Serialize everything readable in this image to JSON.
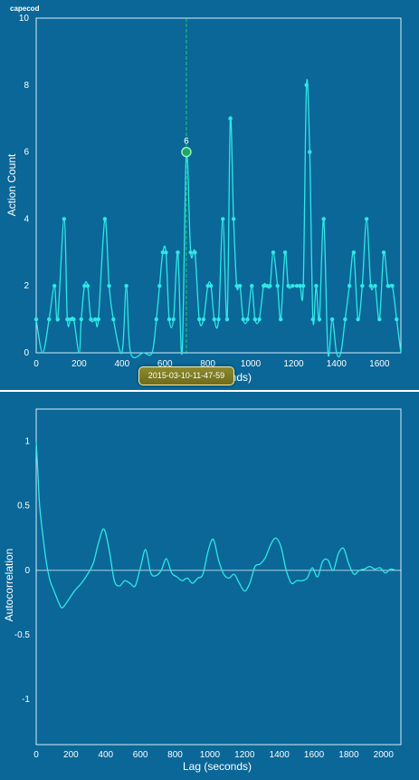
{
  "panels": {
    "top_name": "capecod",
    "tooltip": "2015-03-10-11-47-59",
    "marker_label": "6",
    "divider_color": "#ffffff",
    "line_color": "#2fe7e7",
    "marker_color": "#27c86e",
    "background": "#0a6797"
  },
  "chart_data": [
    {
      "type": "line",
      "xlabel": "Lag (seconds)",
      "ylabel": "Action Count",
      "xlim": [
        0,
        1700
      ],
      "ylim": [
        0,
        10
      ],
      "xticks": [
        0,
        200,
        400,
        600,
        800,
        1000,
        1200,
        1400,
        1600
      ],
      "yticks": [
        0,
        2,
        4,
        6,
        8,
        10
      ],
      "highlight": {
        "x": 700,
        "y": 6
      },
      "points": [
        [
          0,
          1
        ],
        [
          30,
          0
        ],
        [
          60,
          1
        ],
        [
          85,
          2
        ],
        [
          100,
          1
        ],
        [
          130,
          4
        ],
        [
          145,
          1
        ],
        [
          160,
          1
        ],
        [
          175,
          1
        ],
        [
          200,
          0
        ],
        [
          210,
          1
        ],
        [
          225,
          2
        ],
        [
          240,
          2
        ],
        [
          255,
          1
        ],
        [
          275,
          1
        ],
        [
          290,
          1
        ],
        [
          320,
          4
        ],
        [
          340,
          2
        ],
        [
          360,
          1
        ],
        [
          400,
          0
        ],
        [
          420,
          2
        ],
        [
          440,
          0
        ],
        [
          500,
          0
        ],
        [
          540,
          0
        ],
        [
          560,
          1
        ],
        [
          575,
          2
        ],
        [
          590,
          3
        ],
        [
          605,
          3
        ],
        [
          620,
          1
        ],
        [
          640,
          1
        ],
        [
          660,
          3
        ],
        [
          680,
          0
        ],
        [
          700,
          6
        ],
        [
          720,
          3
        ],
        [
          740,
          3
        ],
        [
          760,
          1
        ],
        [
          780,
          1
        ],
        [
          800,
          2
        ],
        [
          815,
          2
        ],
        [
          830,
          1
        ],
        [
          850,
          1
        ],
        [
          870,
          4
        ],
        [
          890,
          1
        ],
        [
          905,
          7
        ],
        [
          920,
          4
        ],
        [
          935,
          2
        ],
        [
          950,
          2
        ],
        [
          965,
          1
        ],
        [
          985,
          1
        ],
        [
          1005,
          2
        ],
        [
          1020,
          1
        ],
        [
          1040,
          1
        ],
        [
          1060,
          2
        ],
        [
          1075,
          2
        ],
        [
          1090,
          2
        ],
        [
          1105,
          3
        ],
        [
          1125,
          2
        ],
        [
          1140,
          1
        ],
        [
          1160,
          3
        ],
        [
          1175,
          2
        ],
        [
          1195,
          2
        ],
        [
          1215,
          2
        ],
        [
          1230,
          2
        ],
        [
          1245,
          2
        ],
        [
          1260,
          8
        ],
        [
          1275,
          6
        ],
        [
          1290,
          1
        ],
        [
          1305,
          2
        ],
        [
          1320,
          1
        ],
        [
          1340,
          4
        ],
        [
          1360,
          0
        ],
        [
          1380,
          1
        ],
        [
          1400,
          0
        ],
        [
          1420,
          0
        ],
        [
          1440,
          1
        ],
        [
          1460,
          2
        ],
        [
          1480,
          3
        ],
        [
          1500,
          1
        ],
        [
          1520,
          2
        ],
        [
          1540,
          4
        ],
        [
          1560,
          2
        ],
        [
          1580,
          2
        ],
        [
          1600,
          1
        ],
        [
          1620,
          3
        ],
        [
          1640,
          2
        ],
        [
          1660,
          2
        ],
        [
          1680,
          1
        ],
        [
          1700,
          0
        ]
      ]
    },
    {
      "type": "line",
      "xlabel": "Lag (seconds)",
      "ylabel": "Autocorrelation",
      "xlim": [
        0,
        2100
      ],
      "ylim": [
        -1.35,
        1.25
      ],
      "xticks": [
        0,
        200,
        400,
        600,
        800,
        1000,
        1200,
        1400,
        1600,
        1800,
        2000
      ],
      "yticks": [
        1,
        0.5,
        0,
        -0.5,
        -1
      ],
      "points": [
        [
          0,
          1
        ],
        [
          10,
          0.75
        ],
        [
          20,
          0.5
        ],
        [
          40,
          0.25
        ],
        [
          60,
          0.05
        ],
        [
          80,
          -0.08
        ],
        [
          100,
          -0.15
        ],
        [
          130,
          -0.25
        ],
        [
          150,
          -0.29
        ],
        [
          180,
          -0.24
        ],
        [
          220,
          -0.16
        ],
        [
          260,
          -0.1
        ],
        [
          300,
          -0.02
        ],
        [
          330,
          0.06
        ],
        [
          360,
          0.22
        ],
        [
          390,
          0.32
        ],
        [
          420,
          0.16
        ],
        [
          450,
          -0.08
        ],
        [
          480,
          -0.12
        ],
        [
          510,
          -0.08
        ],
        [
          540,
          -0.1
        ],
        [
          570,
          -0.12
        ],
        [
          600,
          0.02
        ],
        [
          630,
          0.16
        ],
        [
          660,
          -0.02
        ],
        [
          690,
          -0.04
        ],
        [
          720,
          0.0
        ],
        [
          750,
          0.09
        ],
        [
          780,
          -0.02
        ],
        [
          810,
          -0.05
        ],
        [
          840,
          -0.08
        ],
        [
          870,
          -0.06
        ],
        [
          900,
          -0.1
        ],
        [
          930,
          -0.06
        ],
        [
          960,
          -0.03
        ],
        [
          990,
          0.15
        ],
        [
          1020,
          0.24
        ],
        [
          1050,
          0.08
        ],
        [
          1080,
          -0.03
        ],
        [
          1110,
          -0.06
        ],
        [
          1140,
          -0.03
        ],
        [
          1170,
          -0.1
        ],
        [
          1200,
          -0.16
        ],
        [
          1230,
          -0.1
        ],
        [
          1260,
          0.03
        ],
        [
          1290,
          0.05
        ],
        [
          1320,
          0.1
        ],
        [
          1350,
          0.2
        ],
        [
          1380,
          0.25
        ],
        [
          1410,
          0.18
        ],
        [
          1440,
          0.0
        ],
        [
          1470,
          -0.1
        ],
        [
          1500,
          -0.08
        ],
        [
          1530,
          -0.08
        ],
        [
          1560,
          -0.06
        ],
        [
          1590,
          0.02
        ],
        [
          1620,
          -0.05
        ],
        [
          1650,
          0.07
        ],
        [
          1680,
          0.08
        ],
        [
          1710,
          0.0
        ],
        [
          1740,
          0.13
        ],
        [
          1770,
          0.17
        ],
        [
          1800,
          0.05
        ],
        [
          1830,
          -0.03
        ],
        [
          1860,
          0.0
        ],
        [
          1890,
          0.01
        ],
        [
          1920,
          0.03
        ],
        [
          1950,
          0.01
        ],
        [
          1980,
          0.02
        ],
        [
          2010,
          -0.02
        ],
        [
          2040,
          0.01
        ],
        [
          2070,
          0.0
        ]
      ]
    }
  ]
}
